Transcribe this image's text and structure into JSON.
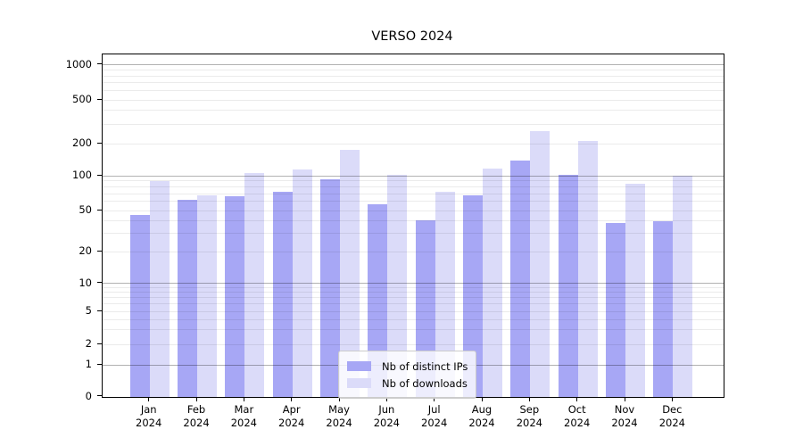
{
  "title": "VERSO 2024",
  "colors": {
    "ips_bar": "#a7a7f5",
    "downloads_bar": "#dbdbf9",
    "major_grid": "#b0b0b0",
    "minor_grid": "#ebebeb",
    "spine": "#000000"
  },
  "legend": {
    "items": [
      {
        "label": "Nb of distinct IPs",
        "color_key": "ips_bar"
      },
      {
        "label": "Nb of downloads",
        "color_key": "downloads_bar"
      }
    ]
  },
  "y_axis": {
    "tick_labels": [
      "0",
      "1",
      "2",
      "5",
      "10",
      "20",
      "50",
      "100",
      "200",
      "500",
      "1000"
    ]
  },
  "chart_data": {
    "type": "bar",
    "title": "VERSO 2024",
    "categories": [
      "Jan 2024",
      "Feb 2024",
      "Mar 2024",
      "Apr 2024",
      "May 2024",
      "Jun 2024",
      "Jul 2024",
      "Aug 2024",
      "Sep 2024",
      "Oct 2024",
      "Nov 2024",
      "Dec 2024"
    ],
    "series": [
      {
        "name": "Nb of distinct IPs",
        "values": [
          45,
          62,
          66,
          72,
          93,
          57,
          40,
          68,
          140,
          102,
          38,
          39
        ]
      },
      {
        "name": "Nb of downloads",
        "values": [
          90,
          68,
          105,
          115,
          175,
          102,
          73,
          117,
          260,
          210,
          85,
          100
        ]
      }
    ],
    "y_ticks": [
      0,
      1,
      2,
      5,
      10,
      20,
      50,
      100,
      200,
      500,
      1000
    ],
    "y_scale": "symlog",
    "ylim": [
      0,
      1250
    ],
    "xlabel": "",
    "ylabel": "",
    "grid": true,
    "legend_position": "lower center"
  }
}
